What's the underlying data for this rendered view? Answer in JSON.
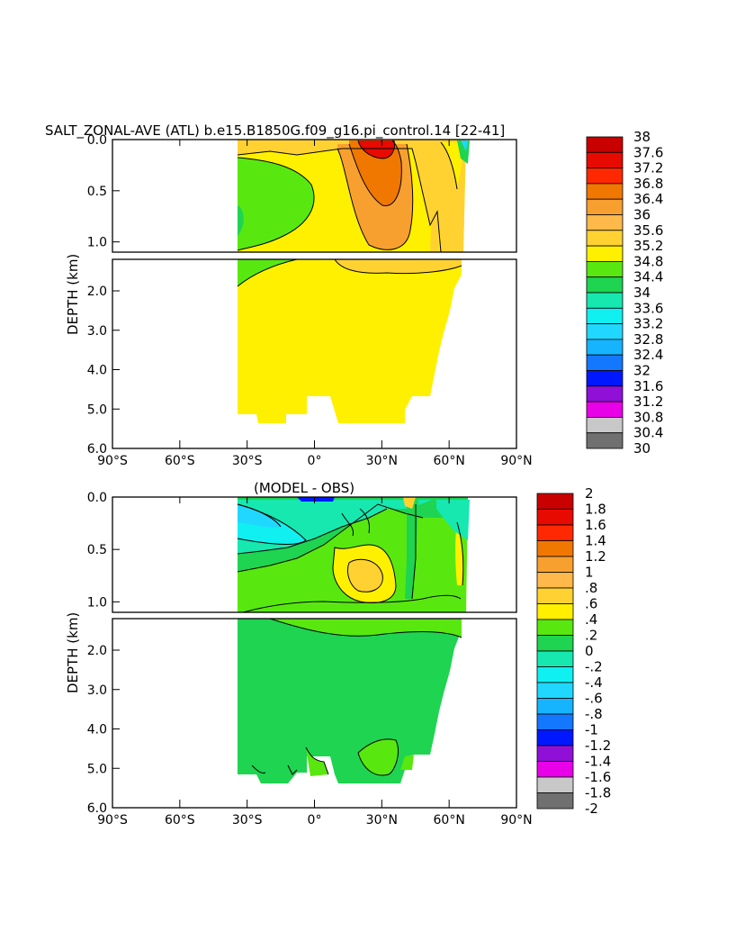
{
  "title": "SALT_ZONAL-AVE (ATL) b.e15.B1850G.f09_g16.pi_control.14  [22-41]",
  "chart_data": [
    {
      "type": "contour",
      "subtitle": "",
      "xlabel": "",
      "ylabel": "DEPTH (km)",
      "x_ticks": [
        "90°S",
        "60°S",
        "30°S",
        "0°",
        "30°N",
        "60°N",
        "90°N"
      ],
      "x_range_deg": [
        -90,
        90
      ],
      "y_ticks_upper": [
        "0.0",
        "0.5",
        "1.0"
      ],
      "y_ticks_lower": [
        "2.0",
        "3.0",
        "4.0",
        "5.0",
        "6.0"
      ],
      "y_range_km": [
        0,
        6
      ],
      "colorbar_levels": [
        "38",
        "37.6",
        "37.2",
        "36.8",
        "36.4",
        "36",
        "35.6",
        "35.2",
        "34.8",
        "34.4",
        "34",
        "33.6",
        "33.2",
        "32.8",
        "32.4",
        "32",
        "31.6",
        "31.2",
        "30.8",
        "30.4",
        "30"
      ],
      "colorbar_colors": [
        "#c80000",
        "#e60a00",
        "#ff2800",
        "#f07800",
        "#f7a030",
        "#ffb84a",
        "#ffd232",
        "#fff000",
        "#58e810",
        "#1ed450",
        "#16e8b0",
        "#10f0f0",
        "#20d8ff",
        "#16b4ff",
        "#1478ff",
        "#0018ff",
        "#9010d8",
        "#e800e8",
        "#c8c8c8",
        "#707070"
      ]
    },
    {
      "type": "contour",
      "subtitle": "(MODEL - OBS)",
      "xlabel": "",
      "ylabel": "DEPTH (km)",
      "x_ticks": [
        "90°S",
        "60°S",
        "30°S",
        "0°",
        "30°N",
        "60°N",
        "90°N"
      ],
      "x_range_deg": [
        -90,
        90
      ],
      "y_ticks_upper": [
        "0.0",
        "0.5",
        "1.0"
      ],
      "y_ticks_lower": [
        "2.0",
        "3.0",
        "4.0",
        "5.0",
        "6.0"
      ],
      "y_range_km": [
        0,
        6
      ],
      "colorbar_levels": [
        "2",
        "1.8",
        "1.6",
        "1.4",
        "1.2",
        "1",
        ".8",
        ".6",
        ".4",
        ".2",
        "0",
        "-.2",
        "-.4",
        "-.6",
        "-.8",
        "-1",
        "-1.2",
        "-1.4",
        "-1.6",
        "-1.8",
        "-2"
      ],
      "colorbar_colors": [
        "#c80000",
        "#e60a00",
        "#ff2800",
        "#f07800",
        "#f7a030",
        "#ffb84a",
        "#ffd232",
        "#fff000",
        "#58e810",
        "#1ed450",
        "#16e8b0",
        "#10f0f0",
        "#20d8ff",
        "#16b4ff",
        "#1478ff",
        "#0018ff",
        "#9010d8",
        "#e800e8",
        "#c8c8c8",
        "#707070"
      ]
    }
  ]
}
